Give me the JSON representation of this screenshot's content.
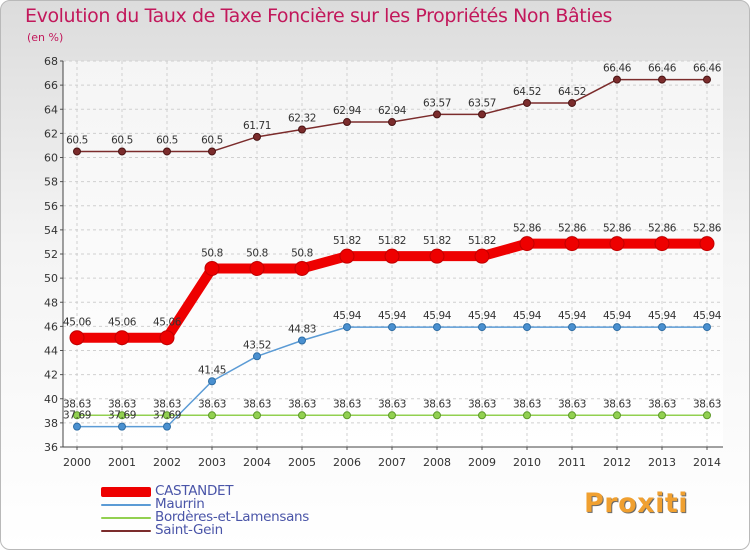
{
  "title": "Evolution du Taux de Taxe Foncière sur les Propriétés Non Bâties",
  "unit_label": "(en %)",
  "logo_text": "Proxiti",
  "chart_data": {
    "type": "line",
    "categories": [
      "2000",
      "2001",
      "2002",
      "2003",
      "2004",
      "2005",
      "2006",
      "2007",
      "2008",
      "2009",
      "2010",
      "2011",
      "2012",
      "2013",
      "2014"
    ],
    "ylim": [
      36,
      68
    ],
    "yticks": [
      36,
      38,
      40,
      42,
      44,
      46,
      48,
      50,
      52,
      54,
      56,
      58,
      60,
      62,
      64,
      66,
      68
    ],
    "grid": true,
    "legend_position": "bottom-left",
    "series": [
      {
        "name": "CASTANDET",
        "color": "#ee0000",
        "values": [
          45.06,
          45.06,
          45.06,
          50.8,
          50.8,
          50.8,
          51.82,
          51.82,
          51.82,
          51.82,
          52.86,
          52.86,
          52.86,
          52.86,
          52.86
        ],
        "labels": [
          "45.06",
          "45.06",
          "45.06",
          "50.8",
          "50.8",
          "50.8",
          "51.82",
          "51.82",
          "51.82",
          "51.82",
          "52.86",
          "52.86",
          "52.86",
          "52.86",
          "52.86"
        ]
      },
      {
        "name": "Maurrin",
        "color": "#5b9bd5",
        "values": [
          37.69,
          37.69,
          37.69,
          41.45,
          43.52,
          44.83,
          45.94,
          45.94,
          45.94,
          45.94,
          45.94,
          45.94,
          45.94,
          45.94,
          45.94
        ],
        "labels": [
          "37.69",
          "37.69",
          "37.69",
          "41.45",
          "43.52",
          "44.83",
          "45.94",
          "45.94",
          "45.94",
          "45.94",
          "45.94",
          "45.94",
          "45.94",
          "45.94",
          "45.94"
        ]
      },
      {
        "name": "Bordères-et-Lamensans",
        "color": "#92d050",
        "values": [
          38.63,
          38.63,
          38.63,
          38.63,
          38.63,
          38.63,
          38.63,
          38.63,
          38.63,
          38.63,
          38.63,
          38.63,
          38.63,
          38.63,
          38.63
        ],
        "labels": [
          "38.63",
          "38.63",
          "38.63",
          "38.63",
          "38.63",
          "38.63",
          "38.63",
          "38.63",
          "38.63",
          "38.63",
          "38.63",
          "38.63",
          "38.63",
          "38.63",
          "38.63"
        ]
      },
      {
        "name": "Saint-Gein",
        "color": "#7b2c2c",
        "values": [
          60.5,
          60.5,
          60.5,
          60.5,
          61.71,
          62.32,
          62.94,
          62.94,
          63.57,
          63.57,
          64.52,
          64.52,
          66.46,
          66.46,
          66.46
        ],
        "labels": [
          "60.5",
          "60.5",
          "60.5",
          "60.5",
          "61.71",
          "62.32",
          "62.94",
          "62.94",
          "63.57",
          "63.57",
          "64.52",
          "64.52",
          "66.46",
          "66.46",
          "66.46"
        ]
      }
    ]
  }
}
